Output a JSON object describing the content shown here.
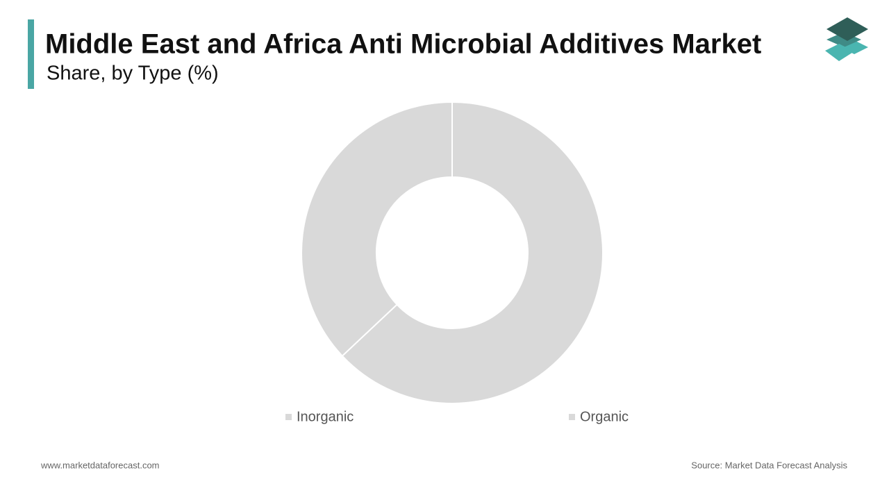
{
  "chart_data": {
    "type": "donut",
    "title": "Middle East and Africa Anti Microbial Additives Market",
    "subtitle": "Share, by Type (%)",
    "categories": [
      "Inorganic",
      "Organic"
    ],
    "values": [
      63,
      37
    ],
    "colors": [
      "#d9d9d9",
      "#d9d9d9"
    ],
    "legend": "bottom"
  },
  "footer": {
    "website": "www.marketdataforecast.com",
    "source": "Source: Market Data Forecast Analysis"
  }
}
